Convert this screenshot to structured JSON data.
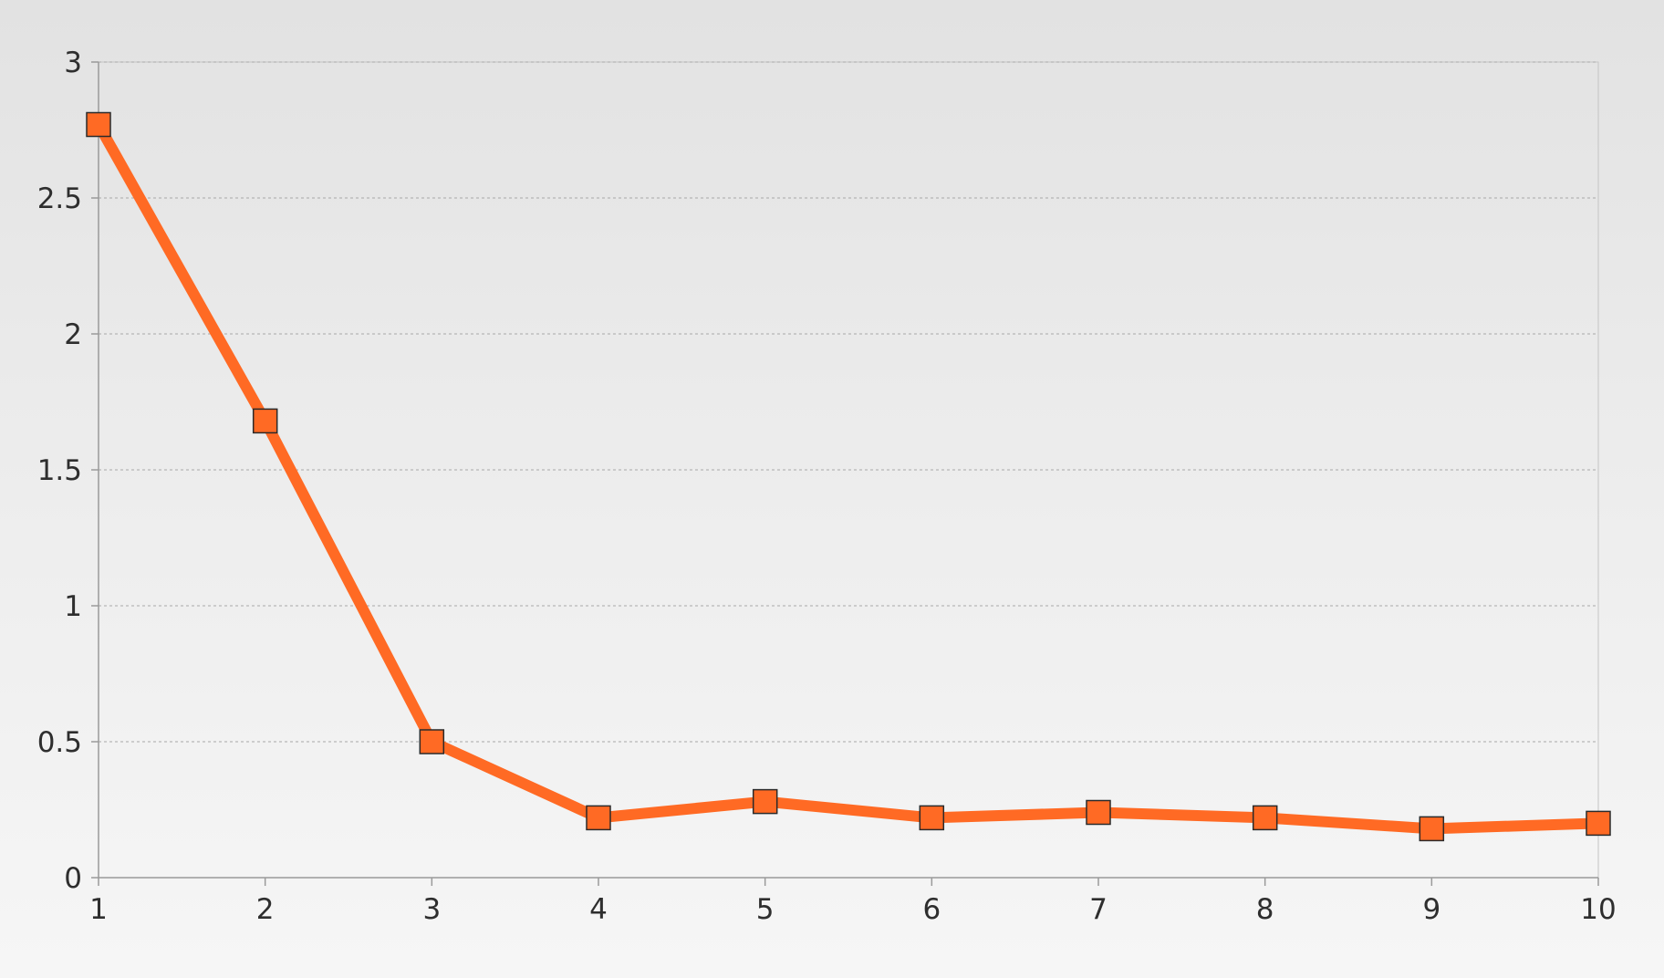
{
  "chart_data": {
    "type": "line",
    "title": "",
    "xlabel": "",
    "ylabel": "",
    "x": [
      1,
      2,
      3,
      4,
      5,
      6,
      7,
      8,
      9,
      10
    ],
    "series": [
      {
        "values": [
          2.77,
          1.68,
          0.5,
          0.22,
          0.28,
          0.22,
          0.24,
          0.22,
          0.18,
          0.2
        ],
        "color": "#ff6a24",
        "marker": "square"
      }
    ],
    "xlim": [
      1,
      10
    ],
    "ylim": [
      0,
      3
    ],
    "x_ticks": [
      "1",
      "2",
      "3",
      "4",
      "5",
      "6",
      "7",
      "8",
      "9",
      "10"
    ],
    "y_ticks": [
      "0",
      "0.5",
      "1",
      "1.5",
      "2",
      "2.5",
      "3"
    ],
    "grid": "horizontal dashed",
    "legend": "none"
  }
}
